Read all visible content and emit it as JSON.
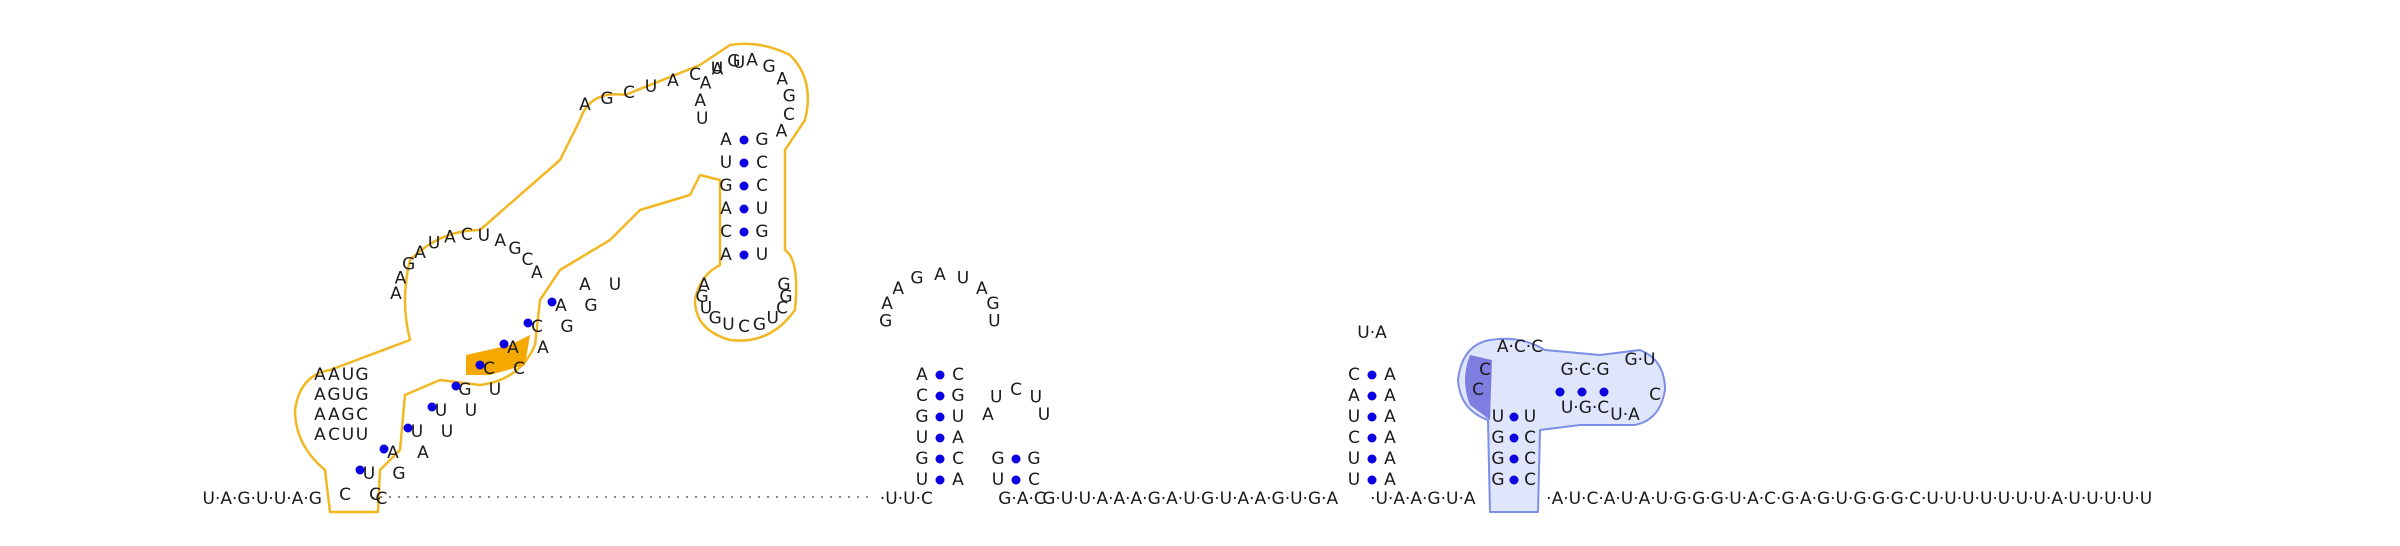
{
  "sequence_strip": [
    "U·A·G·U·U·A·G",
    "·C",
    "·U·U·C",
    "G·A·C",
    "G·U·U·A·A·A·G·A·U·G·U·A·A·G·U·G·A",
    "·U·A·A·G·U·A",
    "·A·U·C·A·U·A·U·G·G·G·U·A·C·G·A·G·U·G·G·G·C·U·U·U·U·U·U·U·A·U·U·U·U·U"
  ],
  "helix1": {
    "left": [
      "C",
      "U",
      "A",
      "U",
      "U",
      "G",
      "C",
      "A",
      "C",
      "A",
      "A"
    ],
    "right": [
      "C",
      "G",
      "A",
      "U",
      "U",
      "U",
      "C",
      "A",
      "G",
      "G",
      "U",
      "A",
      "A",
      "G",
      "C",
      "A",
      "U",
      "A",
      "G",
      "G",
      "U",
      "C",
      "A",
      "A"
    ],
    "loop": [
      "A",
      "A",
      "G",
      "A",
      "U",
      "A",
      "C",
      "U",
      "A",
      "G",
      "C",
      "A",
      "A",
      "G",
      "C",
      "U",
      "A",
      "C",
      "U",
      "U",
      "A",
      "A",
      "U",
      "G",
      "A",
      "G",
      "U",
      "G",
      "A",
      "A",
      "G",
      "C",
      "A",
      "C",
      "U",
      "U"
    ]
  },
  "hairpin_long": {
    "stem_left": [
      "A",
      "U",
      "G",
      "A",
      "C",
      "A"
    ],
    "stem_right": [
      "G",
      "C",
      "C",
      "U",
      "G",
      "U"
    ],
    "loop": [
      "A",
      "G",
      "U",
      "G",
      "U",
      "C",
      "G",
      "U",
      "C",
      "G",
      "G"
    ],
    "top_loop": [
      "U",
      "A",
      "A",
      "A",
      "G",
      "A",
      "G",
      "A",
      "G",
      "C",
      "A"
    ]
  },
  "hairpin_2": {
    "stem_left": [
      "U",
      "G",
      "U",
      "G",
      "C",
      "A"
    ],
    "stem_right": [
      "A",
      "C",
      "A",
      "U",
      "G",
      "C"
    ],
    "loop": [
      "G",
      "A",
      "A",
      "G",
      "A",
      "U",
      "A",
      "G",
      "U"
    ]
  },
  "hairpin_3": {
    "stem_left": [
      "U",
      "G"
    ],
    "stem_right": [
      "C",
      "G"
    ],
    "loop": [
      "A",
      "U",
      "C",
      "U",
      "U"
    ]
  },
  "hairpin_4": {
    "stem_left": [
      "U",
      "U",
      "C",
      "U",
      "A",
      "C"
    ],
    "stem_right": [
      "A",
      "A",
      "A",
      "A",
      "A",
      "A"
    ],
    "loop": [
      "U",
      "A"
    ]
  },
  "hairpin_blue": {
    "stem_left": [
      "G",
      "G",
      "G",
      "U"
    ],
    "stem_right": [
      "C",
      "C",
      "C",
      "U"
    ],
    "loop_label": [
      "C",
      "C",
      "G",
      "C",
      "G",
      "U",
      "C",
      "C",
      "A",
      "U",
      "C",
      "G",
      "U",
      "G",
      "G",
      "C"
    ],
    "colors": {
      "fill": "#dfe6fb",
      "stroke": "#7c8fe6",
      "highlight": "#7e7ee0"
    }
  },
  "colors": {
    "orange_outline": "#f2b824",
    "orange_highlight": "#f5a800",
    "pair_dot": "#0d00e0"
  }
}
